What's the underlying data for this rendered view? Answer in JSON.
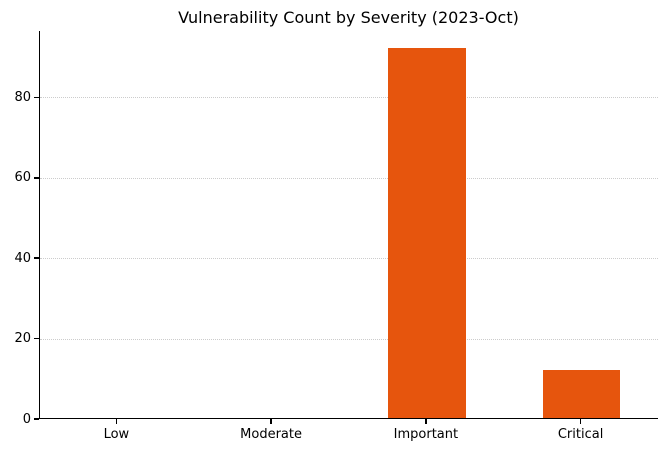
{
  "chart_data": {
    "type": "bar",
    "title": "Vulnerability Count by Severity (2023-Oct)",
    "categories": [
      "Low",
      "Moderate",
      "Important",
      "Critical"
    ],
    "values": [
      0,
      0,
      92,
      12
    ],
    "xlabel": "",
    "ylabel": "",
    "ylim": [
      0,
      96.5
    ],
    "yticks": [
      0,
      20,
      40,
      60,
      80
    ],
    "bar_color": "#e6550d",
    "grid": "horizontal-dotted",
    "gridline_color": "#cccccc",
    "legend": "none",
    "spines": [
      "left",
      "bottom"
    ]
  }
}
